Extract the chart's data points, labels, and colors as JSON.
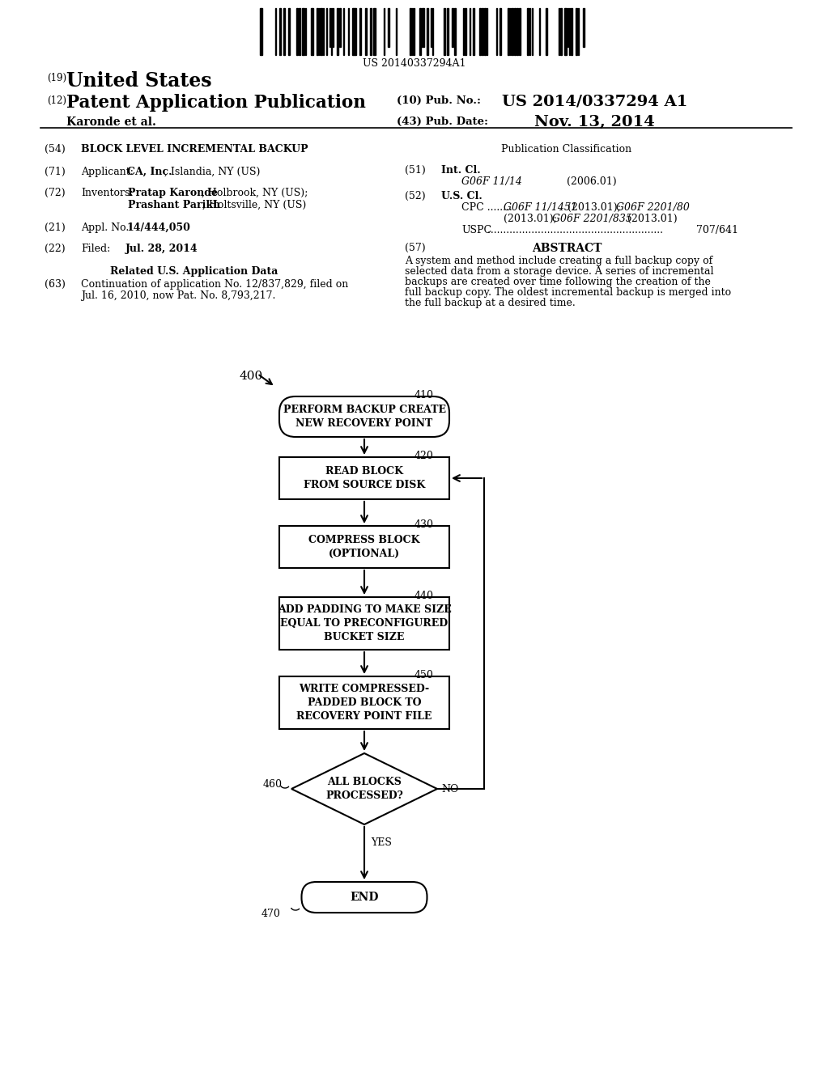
{
  "bg_color": "#ffffff",
  "barcode_text": "US 20140337294A1",
  "header_19_small": "(19)",
  "header_19_large": "United States",
  "header_12_small": "(12)",
  "header_12_large": "Patent Application Publication",
  "pub_no_small": "(10) Pub. No.:",
  "pub_no_large": "US 2014/0337294 A1",
  "pub_date_small": "(43) Pub. Date:",
  "pub_date_large": "Nov. 13, 2014",
  "inventor_line": "Karonde et al.",
  "f54_num": "(54)",
  "f54_text": "BLOCK LEVEL INCREMENTAL BACKUP",
  "f71_num": "(71)",
  "f71_pre": "Applicant: ",
  "f71_bold": "CA, Inc.",
  "f71_post": ", Islandia, NY (US)",
  "f72_num": "(72)",
  "f72_label": "Inventors:",
  "f72_1_bold": "Pratap Karonde",
  "f72_1_post": ", Holbrook, NY (US);",
  "f72_2_bold": "Prashant Parikh",
  "f72_2_post": ", Holtsville, NY (US)",
  "f21_num": "(21)",
  "f21_pre": "Appl. No.: ",
  "f21_bold": "14/444,050",
  "f22_num": "(22)",
  "f22_label": "Filed:",
  "f22_bold": "Jul. 28, 2014",
  "related_title": "Related U.S. Application Data",
  "f63_num": "(63)",
  "f63_line1": "Continuation of application No. 12/837,829, filed on",
  "f63_line2": "Jul. 16, 2010, now Pat. No. 8,793,217.",
  "pub_class": "Publication Classification",
  "f51_num": "(51)",
  "f51_label": "Int. Cl.",
  "f51_italic": "G06F 11/14",
  "f51_year": "(2006.01)",
  "f52_num": "(52)",
  "f52_label": "U.S. Cl.",
  "f52_cpc": "CPC ........",
  "f52_cpc_i1": "G06F 11/1451",
  "f52_cpc_p1": " (2013.01); ",
  "f52_cpc_i2": "G06F 2201/80",
  "f52_cpc_line2_pre": "(2013.01); ",
  "f52_cpc_i3": "G06F 2201/835",
  "f52_cpc_p3": " (2013.01)",
  "f52_uspc": "USPC",
  "f52_uspc_dots": " ........................................................",
  "f52_uspc_val": "707/641",
  "f57_num": "(57)",
  "abstract_title": "ABSTRACT",
  "abstract_text": "A system and method include creating a full backup copy of selected data from a storage device. A series of incremental backups are created over time following the creation of the full backup copy. The oldest incremental backup is merged into the full backup at a desired time.",
  "fc_label_400": "400",
  "n410_label": "410",
  "n410_text": "PERFORM BACKUP CREATE\nNEW RECOVERY POINT",
  "n420_label": "420",
  "n420_text": "READ BLOCK\nFROM SOURCE DISK",
  "n430_label": "430",
  "n430_text": "COMPRESS BLOCK\n(OPTIONAL)",
  "n440_label": "440",
  "n440_text": "ADD PADDING TO MAKE SIZE\nEQUAL TO PRECONFIGURED\nBUCKET SIZE",
  "n450_label": "450",
  "n450_text": "WRITE COMPRESSED-\nPADDED BLOCK TO\nRECOVERY POINT FILE",
  "n460_label": "460",
  "n460_text": "ALL BLOCKS\nPROCESSED?",
  "n470_label": "470",
  "n470_text": "END",
  "yes_label": "YES",
  "no_label": "NO"
}
